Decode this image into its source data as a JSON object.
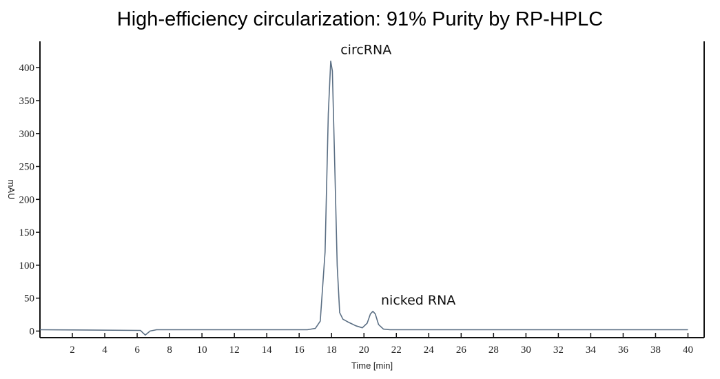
{
  "title": "High-efficiency circularization: 91% Purity by RP-HPLC",
  "chart_data": {
    "type": "line",
    "title": "High-efficiency circularization: 91% Purity by RP-HPLC",
    "xlabel": "Time [min]",
    "ylabel": "mAU",
    "xlim": [
      0,
      41
    ],
    "ylim": [
      -10,
      440
    ],
    "x_ticks": [
      2,
      4,
      6,
      8,
      10,
      12,
      14,
      16,
      18,
      20,
      22,
      24,
      26,
      28,
      30,
      32,
      34,
      36,
      38,
      40
    ],
    "y_ticks": [
      0,
      50,
      100,
      150,
      200,
      250,
      300,
      350,
      400
    ],
    "grid": false,
    "series": [
      {
        "color": "#5b6f84",
        "x": [
          0,
          6.2,
          6.5,
          6.8,
          7.2,
          16.5,
          17.0,
          17.3,
          17.6,
          17.8,
          17.95,
          18.05,
          18.2,
          18.35,
          18.5,
          18.7,
          19.0,
          19.5,
          19.9,
          20.2,
          20.4,
          20.55,
          20.7,
          20.9,
          21.2,
          21.6,
          40
        ],
        "y": [
          2,
          1,
          -6,
          0,
          2,
          2,
          4,
          15,
          120,
          330,
          410,
          395,
          250,
          100,
          28,
          18,
          14,
          8,
          5,
          12,
          26,
          30,
          26,
          10,
          3,
          2,
          2
        ]
      }
    ],
    "annotations": [
      {
        "text": "circRNA",
        "x": 18.0,
        "y": 410
      },
      {
        "text": "nicked RNA",
        "x": 20.5,
        "y": 30
      }
    ]
  }
}
